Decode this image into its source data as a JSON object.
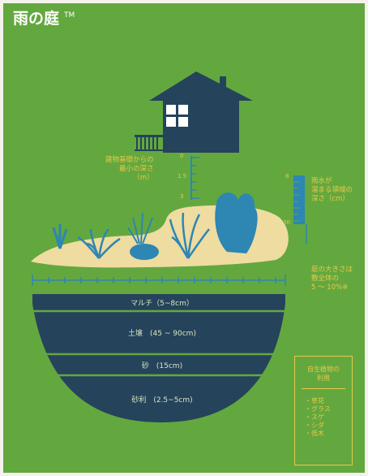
{
  "title": "雨の庭",
  "trademark": "TM",
  "depth_label": "建物基礎からの\n最小の深さ\n（m）",
  "depth_ticks": [
    "0",
    "1.5",
    "3"
  ],
  "rain_label": "雨水が\n溜まる領域の\n深さ（cm）",
  "rain_ticks": [
    "8",
    "30"
  ],
  "garden_size_label": "庭の大きさは\n敷全体の\n5 〜 10%※",
  "layers": [
    {
      "label": "マルチ（5~8cm）"
    },
    {
      "label": "土壌　(45 ~ 90cm)"
    },
    {
      "label": "砂　(15cm)"
    },
    {
      "label": "砂利　(2.5~5cm)"
    }
  ],
  "plants_box": {
    "heading": "自生植物の\n利用",
    "items": [
      "・草花",
      "・グラス",
      "・スゲ",
      "・シダ",
      "・低木"
    ]
  },
  "colors": {
    "background": "#63a83f",
    "navy": "#26435c",
    "blue": "#2e86b3",
    "sand": "#efdca0",
    "accent": "#e8c84a"
  }
}
